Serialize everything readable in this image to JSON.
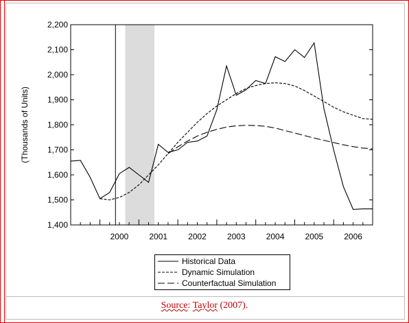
{
  "chart_data": {
    "type": "line",
    "title": "",
    "xlabel": "",
    "ylabel": "(Thousands of Units)",
    "ylim": [
      1400,
      2200
    ],
    "yticks": [
      1400,
      1500,
      1600,
      1700,
      1800,
      1900,
      2000,
      2100,
      2200
    ],
    "ytick_labels": [
      "1,400",
      "1,500",
      "1,600",
      "1,700",
      "1,800",
      "1,900",
      "2,000",
      "2,100",
      "2,200"
    ],
    "xlim": [
      1999.25,
      2007.0
    ],
    "xtick_labels": [
      "2000",
      "2001",
      "2002",
      "2003",
      "2004",
      "2005",
      "2006"
    ],
    "vline_x": 2000.4,
    "shaded_region": [
      2000.65,
      2001.4
    ],
    "legend_position": "bottom-center",
    "series": [
      {
        "name": "Historical Data",
        "style": "solid",
        "x": [
          1999.25,
          1999.5,
          1999.75,
          2000.0,
          2000.25,
          2000.5,
          2000.75,
          2001.0,
          2001.25,
          2001.5,
          2001.75,
          2002.0,
          2002.25,
          2002.5,
          2002.75,
          2003.0,
          2003.25,
          2003.5,
          2003.75,
          2004.0,
          2004.25,
          2004.5,
          2004.75,
          2005.0,
          2005.25,
          2005.5,
          2005.75,
          2006.0,
          2006.25,
          2006.5,
          2006.75,
          2007.0
        ],
        "y": [
          1655,
          1658,
          1590,
          1505,
          1530,
          1605,
          1630,
          1600,
          1570,
          1722,
          1690,
          1700,
          1730,
          1735,
          1755,
          1860,
          2035,
          1918,
          1940,
          1977,
          1965,
          2072,
          2053,
          2100,
          2069,
          2127,
          1865,
          1700,
          1553,
          1462,
          1464,
          1464
        ]
      },
      {
        "name": "Dynamic Simulation",
        "style": "short-dash",
        "x": [
          2000.0,
          2000.25,
          2000.5,
          2000.75,
          2001.0,
          2001.25,
          2001.5,
          2001.75,
          2002.0,
          2002.25,
          2002.5,
          2002.75,
          2003.0,
          2003.25,
          2003.5,
          2003.75,
          2004.0,
          2004.25,
          2004.5,
          2004.75,
          2005.0,
          2005.25,
          2005.5,
          2005.75,
          2006.0,
          2006.25,
          2006.5,
          2006.75,
          2007.0
        ],
        "y": [
          1505,
          1500,
          1510,
          1530,
          1560,
          1600,
          1640,
          1685,
          1730,
          1770,
          1810,
          1845,
          1875,
          1900,
          1925,
          1945,
          1957,
          1965,
          1968,
          1965,
          1955,
          1937,
          1915,
          1893,
          1870,
          1852,
          1838,
          1825,
          1822
        ]
      },
      {
        "name": "Counterfactual Simulation",
        "style": "long-dash",
        "x": [
          2001.75,
          2002.0,
          2002.25,
          2002.5,
          2002.75,
          2003.0,
          2003.25,
          2003.5,
          2003.75,
          2004.0,
          2004.25,
          2004.5,
          2004.75,
          2005.0,
          2005.25,
          2005.5,
          2005.75,
          2006.0,
          2006.25,
          2006.5,
          2006.75,
          2007.0
        ],
        "y": [
          1685,
          1712,
          1735,
          1755,
          1770,
          1782,
          1791,
          1796,
          1798,
          1797,
          1794,
          1787,
          1777,
          1767,
          1757,
          1747,
          1738,
          1729,
          1720,
          1713,
          1707,
          1704
        ]
      }
    ]
  },
  "caption": {
    "prefix": "Source",
    "colon": ": ",
    "author": "Taylor",
    "year": " (2007)."
  }
}
